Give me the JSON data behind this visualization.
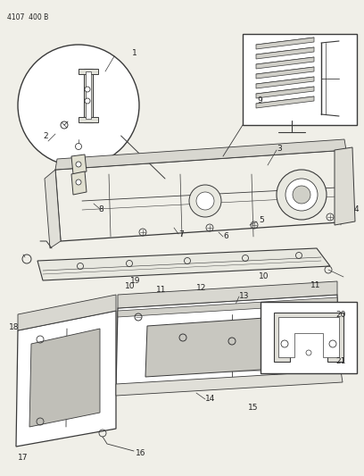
{
  "page_label": "4107  400 B",
  "bg_color": "#f0efe8",
  "line_color": "#3a3a3a",
  "text_color": "#222222",
  "lfs": 6.5,
  "plfs": 5.5
}
